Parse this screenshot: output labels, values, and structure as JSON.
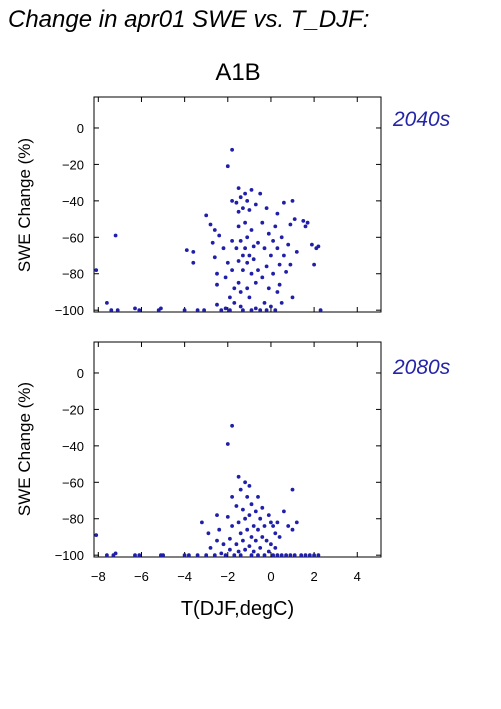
{
  "figure": {
    "title": "Change in apr01 SWE vs. T_DJF:",
    "scenario": "A1B",
    "colors": {
      "points": "#1f1faa",
      "period_text": "#2424a8",
      "axes": "#000000"
    }
  },
  "chart_data": [
    {
      "type": "scatter",
      "period_label": "2040s",
      "ylabel": "SWE Change (%)",
      "xlabel": "",
      "xlim": [
        -8.2,
        5.1
      ],
      "ylim": [
        -101,
        17
      ],
      "xticks": [
        -8,
        -6,
        -4,
        -2,
        0,
        2,
        4
      ],
      "yticks": [
        0,
        -20,
        -40,
        -60,
        -80,
        -100
      ],
      "x_tick_labels_shown": false,
      "points": [
        [
          -8.1,
          -78
        ],
        [
          -7.6,
          -96
        ],
        [
          -7.4,
          -100
        ],
        [
          -7.2,
          -59
        ],
        [
          -7.1,
          -100
        ],
        [
          -6.3,
          -99
        ],
        [
          -6.1,
          -100
        ],
        [
          -5.2,
          -100
        ],
        [
          -5.1,
          -99
        ],
        [
          -4.0,
          -100
        ],
        [
          -3.9,
          -67
        ],
        [
          -3.6,
          -68
        ],
        [
          -3.6,
          -74
        ],
        [
          -3.4,
          -100
        ],
        [
          -3.1,
          -100
        ],
        [
          -3.0,
          -48
        ],
        [
          -2.8,
          -53
        ],
        [
          -2.7,
          -63
        ],
        [
          -2.6,
          -56
        ],
        [
          -2.6,
          -71
        ],
        [
          -2.5,
          -80
        ],
        [
          -2.5,
          -86
        ],
        [
          -2.5,
          -97
        ],
        [
          -2.4,
          -59
        ],
        [
          -2.3,
          -100
        ],
        [
          -2.2,
          -66
        ],
        [
          -2.1,
          -82
        ],
        [
          -2.1,
          -99
        ],
        [
          -2.0,
          -21
        ],
        [
          -2.0,
          -74
        ],
        [
          -1.9,
          -93
        ],
        [
          -1.9,
          -100
        ],
        [
          -1.8,
          -12
        ],
        [
          -1.8,
          -40
        ],
        [
          -1.8,
          -62
        ],
        [
          -1.8,
          -78
        ],
        [
          -1.7,
          -88
        ],
        [
          -1.7,
          -96
        ],
        [
          -1.6,
          -41
        ],
        [
          -1.6,
          -66
        ],
        [
          -1.5,
          -33
        ],
        [
          -1.5,
          -46
        ],
        [
          -1.5,
          -54
        ],
        [
          -1.5,
          -73
        ],
        [
          -1.5,
          -85
        ],
        [
          -1.4,
          -38
        ],
        [
          -1.4,
          -62
        ],
        [
          -1.4,
          -90
        ],
        [
          -1.4,
          -98
        ],
        [
          -1.3,
          -44
        ],
        [
          -1.3,
          -70
        ],
        [
          -1.3,
          -78
        ],
        [
          -1.3,
          -100
        ],
        [
          -1.2,
          -36
        ],
        [
          -1.2,
          -52
        ],
        [
          -1.2,
          -66
        ],
        [
          -1.1,
          -40
        ],
        [
          -1.1,
          -60
        ],
        [
          -1.1,
          -74
        ],
        [
          -1.1,
          -88
        ],
        [
          -1.0,
          -45
        ],
        [
          -1.0,
          -70
        ],
        [
          -1.0,
          -93
        ],
        [
          -0.9,
          -34
        ],
        [
          -0.9,
          -56
        ],
        [
          -0.9,
          -80
        ],
        [
          -0.9,
          -100
        ],
        [
          -0.8,
          -65
        ],
        [
          -0.8,
          -72
        ],
        [
          -0.7,
          -42
        ],
        [
          -0.7,
          -85
        ],
        [
          -0.7,
          -99
        ],
        [
          -0.6,
          -63
        ],
        [
          -0.6,
          -78
        ],
        [
          -0.5,
          -36
        ],
        [
          -0.5,
          -100
        ],
        [
          -0.4,
          -52
        ],
        [
          -0.4,
          -82
        ],
        [
          -0.3,
          -66
        ],
        [
          -0.3,
          -96
        ],
        [
          -0.2,
          -44
        ],
        [
          -0.2,
          -76
        ],
        [
          -0.2,
          -100
        ],
        [
          -0.1,
          -58
        ],
        [
          -0.1,
          -88
        ],
        [
          0.0,
          -70
        ],
        [
          0.0,
          -98
        ],
        [
          0.1,
          -62
        ],
        [
          0.1,
          -80
        ],
        [
          0.2,
          -54
        ],
        [
          0.2,
          -100
        ],
        [
          0.3,
          -47
        ],
        [
          0.3,
          -66
        ],
        [
          0.3,
          -90
        ],
        [
          0.4,
          -75
        ],
        [
          0.4,
          -86
        ],
        [
          0.5,
          -60
        ],
        [
          0.5,
          -96
        ],
        [
          0.6,
          -41
        ],
        [
          0.6,
          -70
        ],
        [
          0.7,
          -79
        ],
        [
          0.8,
          -64
        ],
        [
          0.9,
          -53
        ],
        [
          0.9,
          -75
        ],
        [
          1.0,
          -40
        ],
        [
          1.0,
          -93
        ],
        [
          1.1,
          -50
        ],
        [
          1.2,
          -68
        ],
        [
          1.5,
          -51
        ],
        [
          1.6,
          -54
        ],
        [
          1.7,
          -52
        ],
        [
          1.9,
          -64
        ],
        [
          2.0,
          -75
        ],
        [
          2.1,
          -66
        ],
        [
          2.2,
          -65
        ],
        [
          2.3,
          -100
        ]
      ]
    },
    {
      "type": "scatter",
      "period_label": "2080s",
      "ylabel": "SWE Change (%)",
      "xlabel": "T(DJF,degC)",
      "xlim": [
        -8.2,
        5.1
      ],
      "ylim": [
        -101,
        17
      ],
      "xticks": [
        -8,
        -6,
        -4,
        -2,
        0,
        2,
        4
      ],
      "yticks": [
        0,
        -20,
        -40,
        -60,
        -80,
        -100
      ],
      "x_tick_labels_shown": true,
      "points": [
        [
          -8.1,
          -89
        ],
        [
          -7.6,
          -100
        ],
        [
          -7.3,
          -100
        ],
        [
          -7.2,
          -99
        ],
        [
          -6.3,
          -100
        ],
        [
          -6.1,
          -100
        ],
        [
          -5.1,
          -100
        ],
        [
          -5.0,
          -100
        ],
        [
          -4.0,
          -100
        ],
        [
          -3.8,
          -100
        ],
        [
          -3.4,
          -100
        ],
        [
          -3.2,
          -82
        ],
        [
          -3.0,
          -100
        ],
        [
          -2.9,
          -88
        ],
        [
          -2.8,
          -96
        ],
        [
          -2.6,
          -100
        ],
        [
          -2.5,
          -78
        ],
        [
          -2.5,
          -92
        ],
        [
          -2.4,
          -86
        ],
        [
          -2.3,
          -99
        ],
        [
          -2.2,
          -94
        ],
        [
          -2.1,
          -100
        ],
        [
          -2.0,
          -39
        ],
        [
          -2.0,
          -79
        ],
        [
          -1.9,
          -91
        ],
        [
          -1.9,
          -97
        ],
        [
          -1.8,
          -29
        ],
        [
          -1.8,
          -68
        ],
        [
          -1.8,
          -84
        ],
        [
          -1.7,
          -100
        ],
        [
          -1.6,
          -73
        ],
        [
          -1.6,
          -94
        ],
        [
          -1.5,
          -57
        ],
        [
          -1.5,
          -82
        ],
        [
          -1.5,
          -98
        ],
        [
          -1.4,
          -64
        ],
        [
          -1.4,
          -88
        ],
        [
          -1.4,
          -100
        ],
        [
          -1.3,
          -75
        ],
        [
          -1.3,
          -92
        ],
        [
          -1.2,
          -60
        ],
        [
          -1.2,
          -80
        ],
        [
          -1.2,
          -97
        ],
        [
          -1.1,
          -68
        ],
        [
          -1.1,
          -86
        ],
        [
          -1.0,
          -62
        ],
        [
          -1.0,
          -78
        ],
        [
          -1.0,
          -95
        ],
        [
          -0.9,
          -72
        ],
        [
          -0.9,
          -90
        ],
        [
          -0.9,
          -100
        ],
        [
          -0.8,
          -84
        ],
        [
          -0.8,
          -98
        ],
        [
          -0.7,
          -76
        ],
        [
          -0.7,
          -92
        ],
        [
          -0.6,
          -68
        ],
        [
          -0.6,
          -86
        ],
        [
          -0.6,
          -100
        ],
        [
          -0.5,
          -80
        ],
        [
          -0.5,
          -96
        ],
        [
          -0.4,
          -74
        ],
        [
          -0.4,
          -90
        ],
        [
          -0.3,
          -84
        ],
        [
          -0.3,
          -100
        ],
        [
          -0.2,
          -92
        ],
        [
          -0.1,
          -78
        ],
        [
          -0.1,
          -98
        ],
        [
          0.0,
          -82
        ],
        [
          0.0,
          -94
        ],
        [
          0.1,
          -84
        ],
        [
          0.1,
          -100
        ],
        [
          0.2,
          -88
        ],
        [
          0.2,
          -96
        ],
        [
          0.3,
          -82
        ],
        [
          0.3,
          -100
        ],
        [
          0.4,
          -90
        ],
        [
          0.5,
          -100
        ],
        [
          0.6,
          -76
        ],
        [
          0.7,
          -100
        ],
        [
          0.8,
          -84
        ],
        [
          0.9,
          -100
        ],
        [
          1.0,
          -64
        ],
        [
          1.0,
          -86
        ],
        [
          1.1,
          -100
        ],
        [
          1.2,
          -82
        ],
        [
          1.4,
          -100
        ],
        [
          1.6,
          -100
        ],
        [
          1.8,
          -100
        ],
        [
          2.0,
          -100
        ],
        [
          2.2,
          -100
        ]
      ]
    }
  ]
}
